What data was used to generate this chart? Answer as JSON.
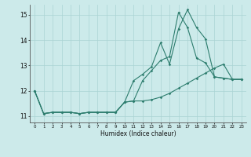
{
  "xlabel": "Humidex (Indice chaleur)",
  "background_color": "#cceaea",
  "grid_color": "#aad4d4",
  "line_color": "#2d7d6e",
  "xlim": [
    -0.5,
    23.5
  ],
  "ylim": [
    10.75,
    15.4
  ],
  "hours": [
    0,
    1,
    2,
    3,
    4,
    5,
    6,
    7,
    8,
    9,
    10,
    11,
    12,
    13,
    14,
    15,
    16,
    17,
    18,
    19,
    20,
    21,
    22,
    23
  ],
  "line1": [
    12.0,
    11.1,
    11.15,
    11.15,
    11.15,
    11.1,
    11.15,
    11.15,
    11.15,
    11.15,
    11.55,
    12.4,
    12.65,
    12.95,
    13.9,
    13.05,
    14.45,
    15.2,
    14.5,
    14.05,
    12.55,
    12.5,
    12.45,
    12.45
  ],
  "line2": [
    12.0,
    11.1,
    11.15,
    11.15,
    11.15,
    11.1,
    11.15,
    11.15,
    11.15,
    11.15,
    11.55,
    11.6,
    12.4,
    12.8,
    13.2,
    13.35,
    15.1,
    14.5,
    13.3,
    13.1,
    12.55,
    12.5,
    12.45,
    12.45
  ],
  "line3": [
    12.0,
    11.1,
    11.15,
    11.15,
    11.15,
    11.1,
    11.15,
    11.15,
    11.15,
    11.15,
    11.55,
    11.6,
    11.6,
    11.65,
    11.75,
    11.9,
    12.1,
    12.3,
    12.5,
    12.7,
    12.9,
    13.05,
    12.45,
    12.45
  ]
}
